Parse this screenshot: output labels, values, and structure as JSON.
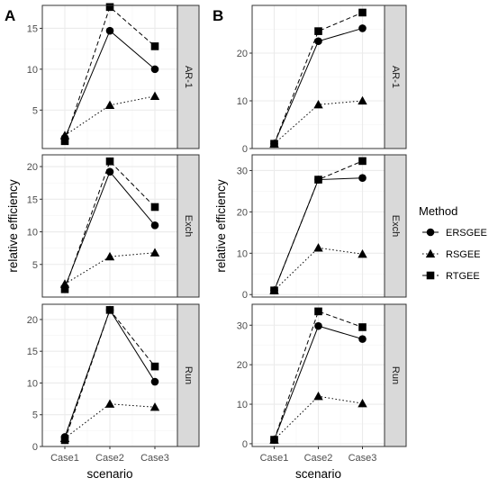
{
  "figure": {
    "legend_title": "Method",
    "xlabel": "scenario",
    "ylabel": "relative efficiency"
  },
  "colors": {
    "line": "#000000",
    "panel_border": "#333333",
    "grid_major": "#ebebeb",
    "strip_bg": "#d9d9d9"
  },
  "chart_data": [
    {
      "type": "line",
      "panel_label": "A",
      "xlabel": "scenario",
      "ylabel": "relative efficiency",
      "categories": [
        "Case1",
        "Case2",
        "Case3"
      ],
      "legend_position": "right",
      "grid": true,
      "facets": [
        {
          "strip": "AR-1",
          "ylim": [
            0.3,
            17.8
          ],
          "yticks": [
            5,
            10,
            15
          ],
          "series": [
            {
              "name": "ERSGEE",
              "values": [
                1.6,
                14.7,
                10.0
              ]
            },
            {
              "name": "RSGEE",
              "values": [
                1.9,
                5.6,
                6.7
              ]
            },
            {
              "name": "RTGEE",
              "values": [
                1.2,
                17.6,
                12.8
              ]
            }
          ]
        },
        {
          "strip": "Exch",
          "ylim": [
            0.0,
            21.8
          ],
          "yticks": [
            5,
            10,
            15,
            20
          ],
          "series": [
            {
              "name": "ERSGEE",
              "values": [
                1.5,
                19.2,
                11.0
              ]
            },
            {
              "name": "RSGEE",
              "values": [
                2.0,
                6.2,
                6.8
              ]
            },
            {
              "name": "RTGEE",
              "values": [
                1.2,
                20.8,
                13.8
              ]
            }
          ]
        },
        {
          "strip": "Run",
          "ylim": [
            0.0,
            22.4
          ],
          "yticks": [
            0,
            5,
            10,
            15,
            20
          ],
          "series": [
            {
              "name": "ERSGEE",
              "values": [
                1.5,
                21.5,
                10.2
              ]
            },
            {
              "name": "RSGEE",
              "values": [
                1.3,
                6.7,
                6.2
              ]
            },
            {
              "name": "RTGEE",
              "values": [
                1.0,
                21.5,
                12.6
              ]
            }
          ]
        }
      ]
    },
    {
      "type": "line",
      "panel_label": "B",
      "xlabel": "scenario",
      "ylabel": "relative efficiency",
      "categories": [
        "Case1",
        "Case2",
        "Case3"
      ],
      "legend_position": "right",
      "grid": true,
      "facets": [
        {
          "strip": "AR-1",
          "ylim": [
            0.0,
            30.0
          ],
          "yticks": [
            0,
            10,
            20
          ],
          "series": [
            {
              "name": "ERSGEE",
              "values": [
                1.0,
                22.5,
                25.2
              ]
            },
            {
              "name": "RSGEE",
              "values": [
                1.0,
                9.2,
                10.0
              ]
            },
            {
              "name": "RTGEE",
              "values": [
                1.0,
                24.6,
                28.5
              ]
            }
          ]
        },
        {
          "strip": "Exch",
          "ylim": [
            -0.6,
            33.8
          ],
          "yticks": [
            0,
            10,
            20,
            30
          ],
          "series": [
            {
              "name": "ERSGEE",
              "values": [
                1.0,
                27.8,
                28.2
              ]
            },
            {
              "name": "RSGEE",
              "values": [
                1.0,
                11.3,
                9.8
              ]
            },
            {
              "name": "RTGEE",
              "values": [
                1.0,
                27.8,
                32.3
              ]
            }
          ]
        },
        {
          "strip": "Run",
          "ylim": [
            -0.7,
            35.3
          ],
          "yticks": [
            0,
            10,
            20,
            30
          ],
          "series": [
            {
              "name": "ERSGEE",
              "values": [
                1.0,
                29.8,
                26.5
              ]
            },
            {
              "name": "RSGEE",
              "values": [
                1.0,
                12.0,
                10.2
              ]
            },
            {
              "name": "RTGEE",
              "values": [
                1.0,
                33.5,
                29.5
              ]
            }
          ]
        }
      ]
    }
  ],
  "legend": {
    "title": "Method",
    "entries": [
      {
        "label": "ERSGEE",
        "shape": "circle",
        "linetype": "solid"
      },
      {
        "label": "RSGEE",
        "shape": "triangle",
        "linetype": "dotted"
      },
      {
        "label": "RTGEE",
        "shape": "square",
        "linetype": "dashed"
      }
    ]
  }
}
